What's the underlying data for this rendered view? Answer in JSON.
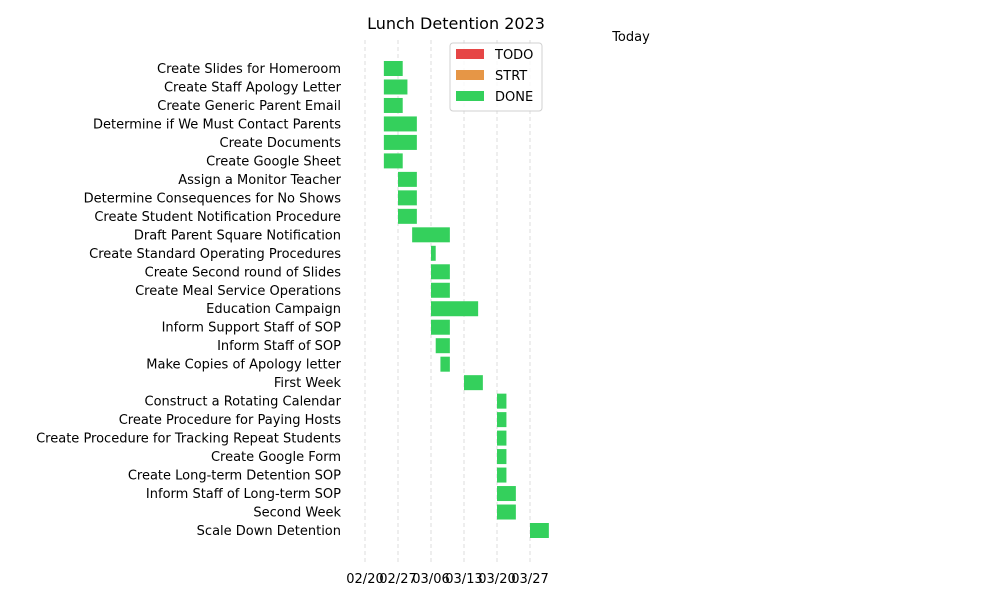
{
  "chart_data": {
    "type": "gantt",
    "title": "Lunch Detention 2023",
    "today_label": "Today",
    "x_ticks": [
      "02/20",
      "02/27",
      "03/06",
      "03/13",
      "03/20",
      "03/27"
    ],
    "x_range": [
      "2023-02-20",
      "2023-03-29"
    ],
    "status_colors": {
      "TODO": "#E64646",
      "STRT": "#E69646",
      "DONE": "#34D05C"
    },
    "legend": [
      {
        "label": "TODO",
        "color": "#E64646"
      },
      {
        "label": "STRT",
        "color": "#E69646"
      },
      {
        "label": "DONE",
        "color": "#34D05C"
      }
    ],
    "legend_position": "top-right",
    "grid": "vertical dashed",
    "tasks": [
      {
        "name": "Create Slides for Homeroom",
        "start": "2023-02-24",
        "end": "2023-02-28",
        "status": "DONE"
      },
      {
        "name": "Create Staff Apology Letter",
        "start": "2023-02-24",
        "end": "2023-03-01",
        "status": "DONE"
      },
      {
        "name": "Create Generic Parent Email",
        "start": "2023-02-24",
        "end": "2023-02-28",
        "status": "DONE"
      },
      {
        "name": "Determine if We Must Contact Parents",
        "start": "2023-02-24",
        "end": "2023-03-03",
        "status": "DONE"
      },
      {
        "name": "Create Documents",
        "start": "2023-02-24",
        "end": "2023-03-03",
        "status": "DONE"
      },
      {
        "name": "Create Google Sheet",
        "start": "2023-02-24",
        "end": "2023-02-28",
        "status": "DONE"
      },
      {
        "name": "Assign a Monitor Teacher",
        "start": "2023-02-27",
        "end": "2023-03-03",
        "status": "DONE"
      },
      {
        "name": "Determine Consequences for No Shows",
        "start": "2023-02-27",
        "end": "2023-03-03",
        "status": "DONE"
      },
      {
        "name": "Create Student Notification Procedure",
        "start": "2023-02-27",
        "end": "2023-03-03",
        "status": "DONE"
      },
      {
        "name": "Draft Parent Square Notification",
        "start": "2023-03-02",
        "end": "2023-03-10",
        "status": "DONE"
      },
      {
        "name": "Create Standard Operating Procedures",
        "start": "2023-03-06",
        "end": "2023-03-07",
        "status": "DONE"
      },
      {
        "name": "Create Second round of Slides",
        "start": "2023-03-06",
        "end": "2023-03-10",
        "status": "DONE"
      },
      {
        "name": "Create Meal Service Operations",
        "start": "2023-03-06",
        "end": "2023-03-10",
        "status": "DONE"
      },
      {
        "name": "Education Campaign",
        "start": "2023-03-06",
        "end": "2023-03-16",
        "status": "DONE"
      },
      {
        "name": "Inform Support Staff of SOP",
        "start": "2023-03-06",
        "end": "2023-03-10",
        "status": "DONE"
      },
      {
        "name": "Inform Staff of SOP",
        "start": "2023-03-07",
        "end": "2023-03-10",
        "status": "DONE"
      },
      {
        "name": "Make Copies of Apology letter",
        "start": "2023-03-08",
        "end": "2023-03-10",
        "status": "DONE"
      },
      {
        "name": "First Week",
        "start": "2023-03-13",
        "end": "2023-03-17",
        "status": "DONE"
      },
      {
        "name": "Construct a Rotating Calendar",
        "start": "2023-03-20",
        "end": "2023-03-22",
        "status": "DONE"
      },
      {
        "name": "Create Procedure for Paying Hosts",
        "start": "2023-03-20",
        "end": "2023-03-22",
        "status": "DONE"
      },
      {
        "name": "Create Procedure for Tracking Repeat Students",
        "start": "2023-03-20",
        "end": "2023-03-22",
        "status": "DONE"
      },
      {
        "name": "Create Google Form",
        "start": "2023-03-20",
        "end": "2023-03-22",
        "status": "DONE"
      },
      {
        "name": "Create Long-term Detention SOP",
        "start": "2023-03-20",
        "end": "2023-03-22",
        "status": "DONE"
      },
      {
        "name": "Inform Staff of Long-term SOP",
        "start": "2023-03-20",
        "end": "2023-03-24",
        "status": "DONE"
      },
      {
        "name": "Second Week",
        "start": "2023-03-20",
        "end": "2023-03-24",
        "status": "DONE"
      },
      {
        "name": "Scale Down Detention",
        "start": "2023-03-27",
        "end": "2023-03-31",
        "status": "DONE"
      }
    ]
  }
}
